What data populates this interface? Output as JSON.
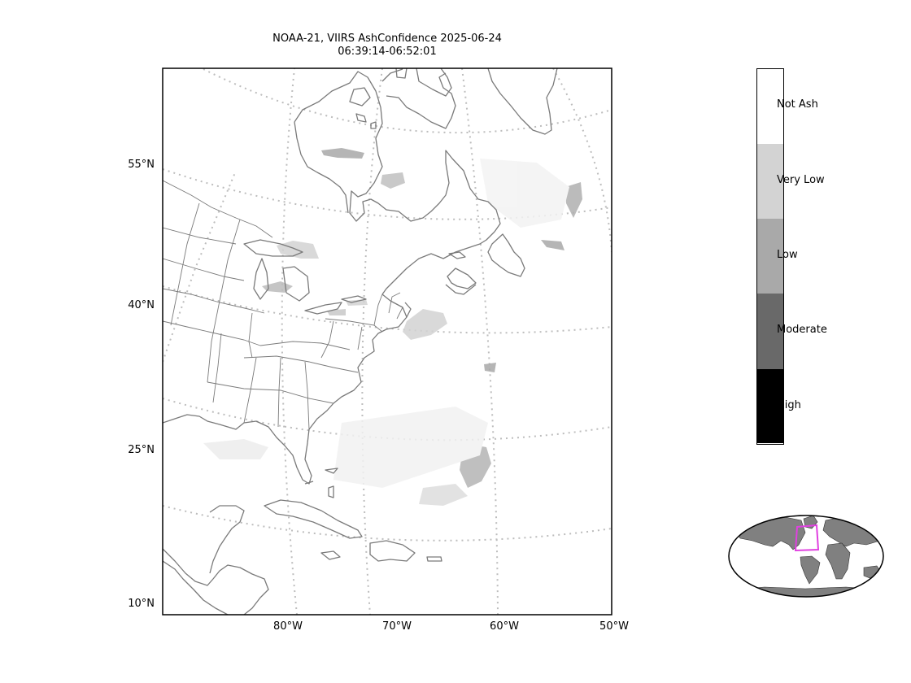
{
  "title": {
    "line1": "NOAA-21, VIIRS AshConfidence 2025-06-24",
    "line2": "06:39:14-06:52:01"
  },
  "axes": {
    "lat_labels": [
      "55°N",
      "40°N",
      "25°N",
      "10°N"
    ],
    "lon_labels": [
      "80°W",
      "70°W",
      "60°W",
      "50°W"
    ]
  },
  "colorbar": {
    "categories": [
      {
        "label": "Not Ash",
        "color": "#ffffff"
      },
      {
        "label": "Very Low",
        "color": "#d3d3d3"
      },
      {
        "label": "Low",
        "color": "#a9a9a9"
      },
      {
        "label": "Moderate",
        "color": "#696969"
      },
      {
        "label": "High",
        "color": "#000000"
      }
    ]
  },
  "colors": {
    "coastline": "#7a7a7a",
    "gridline": "#bdbdbd",
    "inset_land": "#808080",
    "inset_box": "#e040e0"
  }
}
